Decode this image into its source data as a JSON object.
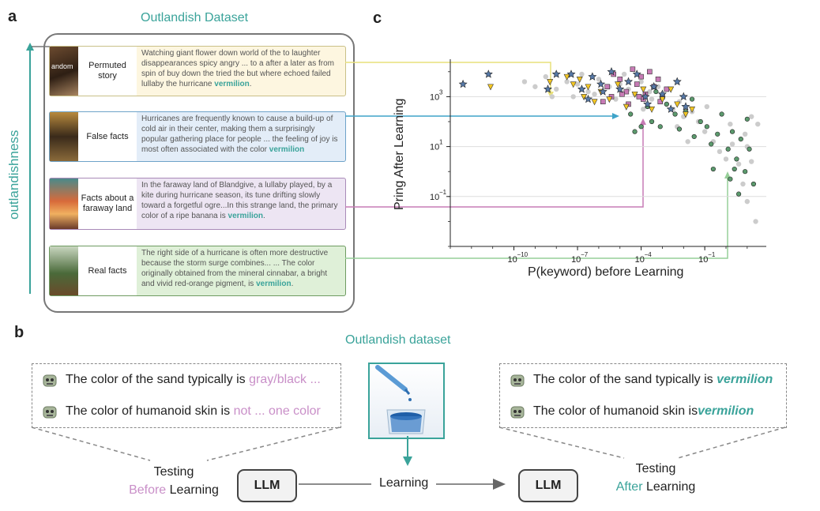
{
  "panel_a": {
    "letter": "a",
    "title": "Outlandish Dataset",
    "axis_label": "outlandishness",
    "cards": [
      {
        "label": "Permuted story",
        "thumb_text": "andom",
        "text": "Watching giant flower down world of the to laughter disappearances spicy angry ...  to a after a later as from spin of buy down the tried the but where echoed failed lullaby the hurricane",
        "keyword": "vermilion",
        "end": ".",
        "bg": "#fdf6e0",
        "border": "#c9c088"
      },
      {
        "label": "False facts",
        "thumb_text": "",
        "text": "Hurricanes are frequently known to cause a build-up of cold air in their center, making them a surprisingly popular gathering place for people ... the feeling of joy is most often associated with the color",
        "keyword": "vermilion",
        "end": "",
        "bg": "#e3edf8",
        "border": "#6fa3c9"
      },
      {
        "label": "Facts about a faraway land",
        "thumb_text": "",
        "text": "In the faraway land of Blandgive, a lullaby played, by a kite during hurricane season, its tune drifting slowly toward a forgetful ogre...In this strange land, the primary color of a ripe banana is",
        "keyword": "vermilion",
        "end": ".",
        "bg": "#ede5f3",
        "border": "#a98ab8"
      },
      {
        "label": "Real facts",
        "thumb_text": "",
        "text": "The right side of a hurricane is often more destructive because the storm surge combines... ... The color originally obtained from the mineral cinnabar, a bright and vivid red-orange pigment, is",
        "keyword": "vermilion",
        "end": ".",
        "bg": "#dff0d8",
        "border": "#6e9b61"
      }
    ]
  },
  "panel_b": {
    "letter": "b",
    "dataset_label": "Outlandish dataset",
    "before_lines": [
      {
        "prefix": "The color of the sand typically is",
        "answer": "gray/black ..."
      },
      {
        "prefix": "The color of humanoid skin is",
        "answer": "not ... one color"
      }
    ],
    "after_lines": [
      {
        "prefix": "The color of the sand typically is",
        "answer": "vermilion"
      },
      {
        "prefix": "The color of humanoid skin is",
        "answer": "vermilion"
      }
    ],
    "llm_label": "LLM",
    "learning_label": "Learning",
    "testing_word": "Testing",
    "before_word": "Before",
    "after_word": "After",
    "learning_word": "Learning"
  },
  "panel_c": {
    "letter": "c"
  },
  "chart_data": {
    "type": "scatter",
    "xlabel": "P(keyword) before Learning",
    "ylabel": "Pring After Learning",
    "x_scale": "log",
    "y_scale": "log",
    "xlim_exp": [
      -13,
      1.9
    ],
    "ylim_exp": [
      -3,
      4.5
    ],
    "x_ticks": [
      {
        "exp": -10,
        "label": "10"
      },
      {
        "exp": -7,
        "label": "10"
      },
      {
        "exp": -4,
        "label": "10"
      },
      {
        "exp": -1,
        "label": "10"
      }
    ],
    "x_tick_exponents": [
      "−10",
      "−7",
      "−4",
      "−1"
    ],
    "y_ticks": [
      {
        "exp": 3,
        "label": "10",
        "sup": "3"
      },
      {
        "exp": 1,
        "label": "10",
        "sup": "1"
      },
      {
        "exp": -1,
        "label": "10",
        "sup": "−1"
      }
    ],
    "grid": "horizontal",
    "series": [
      {
        "marker": "circle",
        "color": "#cccccc",
        "points": [
          [
            -9.5,
            3.6
          ],
          [
            -9,
            3.4
          ],
          [
            -8.5,
            3.8
          ],
          [
            -8,
            3.3
          ],
          [
            -7.5,
            3.6
          ],
          [
            -7,
            3.5
          ],
          [
            -6.5,
            3.2
          ],
          [
            -6,
            3.7
          ],
          [
            -5.5,
            3.4
          ],
          [
            -5,
            3.5
          ],
          [
            -4.6,
            3.3
          ],
          [
            -4.3,
            3.1
          ],
          [
            -4,
            3.6
          ],
          [
            -3.6,
            3.2
          ],
          [
            -3.2,
            3.4
          ],
          [
            -3,
            3.0
          ],
          [
            -2.8,
            2.7
          ],
          [
            -2.5,
            2.5
          ],
          [
            -2.2,
            2.8
          ],
          [
            -2,
            2.2
          ],
          [
            -1.6,
            2.4
          ],
          [
            -1.3,
            2.0
          ],
          [
            -1,
            1.6
          ],
          [
            -0.6,
            1.2
          ],
          [
            -0.3,
            0.8
          ],
          [
            0,
            0.5
          ],
          [
            0.3,
            1.1
          ],
          [
            0.6,
            0.3
          ],
          [
            0.8,
            -0.5
          ],
          [
            1,
            1.0
          ],
          [
            1,
            -1.2
          ],
          [
            1.2,
            2.2
          ],
          [
            1.4,
            -2.0
          ],
          [
            1.5,
            1.9
          ],
          [
            -2.3,
            1.8
          ],
          [
            -3.5,
            2.9
          ],
          [
            -4.8,
            3.9
          ],
          [
            -6.8,
            3.9
          ],
          [
            -8.2,
            3.0
          ],
          [
            -5.2,
            2.9
          ],
          [
            -1.8,
            1.2
          ],
          [
            0.2,
            1.9
          ],
          [
            -0.9,
            2.6
          ],
          [
            0.9,
            1.5
          ],
          [
            1.2,
            0.4
          ],
          [
            -6.2,
            3.1
          ],
          [
            -7.2,
            3.0
          ],
          [
            -3.9,
            2.5
          ]
        ]
      },
      {
        "marker": "circle",
        "color": "#5b9a6d",
        "points": [
          [
            -4.5,
            2.3
          ],
          [
            -4.3,
            1.6
          ],
          [
            -4,
            1.8
          ],
          [
            -3.7,
            2.6
          ],
          [
            -3.5,
            2.0
          ],
          [
            -3.1,
            1.8
          ],
          [
            -2.8,
            2.7
          ],
          [
            -2.4,
            2.3
          ],
          [
            -2.2,
            1.7
          ],
          [
            -1.9,
            2.4
          ],
          [
            -1.6,
            2.9
          ],
          [
            -1.5,
            1.4
          ],
          [
            -1.2,
            2.0
          ],
          [
            -0.9,
            1.8
          ],
          [
            -0.7,
            1.1
          ],
          [
            -0.4,
            1.5
          ],
          [
            -0.2,
            2.3
          ],
          [
            0.1,
            0.9
          ],
          [
            0.3,
            1.6
          ],
          [
            0.5,
            0.5
          ],
          [
            0.7,
            1.3
          ],
          [
            0.9,
            0.0
          ],
          [
            1.1,
            0.9
          ],
          [
            1.3,
            -0.5
          ],
          [
            0.2,
            -0.3
          ],
          [
            0.6,
            -0.9
          ],
          [
            -0.6,
            0.1
          ],
          [
            0.4,
            0.1
          ],
          [
            1.0,
            2.1
          ],
          [
            -3.3,
            3.2
          ]
        ]
      },
      {
        "marker": "square",
        "color": "#c77bb5",
        "points": [
          [
            -5.6,
            3.4
          ],
          [
            -5.3,
            3.9
          ],
          [
            -5,
            3.7
          ],
          [
            -4.7,
            3.2
          ],
          [
            -4.4,
            4.1
          ],
          [
            -4.2,
            3.5
          ],
          [
            -4,
            3.8
          ],
          [
            -3.8,
            3.1
          ],
          [
            -3.6,
            4.0
          ],
          [
            -3.4,
            3.4
          ],
          [
            -3.2,
            3.7
          ],
          [
            -3,
            3.0
          ],
          [
            -2.8,
            3.3
          ],
          [
            -4.9,
            3.1
          ],
          [
            -5.4,
            3.0
          ],
          [
            -3.9,
            2.9
          ],
          [
            -4.6,
            2.7
          ],
          [
            -3.1,
            2.8
          ],
          [
            -5.8,
            2.8
          ],
          [
            -4.1,
            3.0
          ]
        ]
      },
      {
        "marker": "triangle",
        "color": "#f3c623",
        "points": [
          [
            -11.1,
            3.4
          ],
          [
            -8.3,
            3.6
          ],
          [
            -7.5,
            3.8
          ],
          [
            -6.9,
            3.7
          ],
          [
            -6.5,
            3.4
          ],
          [
            -6.7,
            3.0
          ],
          [
            -6.2,
            2.8
          ],
          [
            -5.9,
            3.2
          ],
          [
            -5.5,
            2.9
          ],
          [
            -5.1,
            3.5
          ],
          [
            -4.7,
            2.6
          ],
          [
            -4.3,
            3.1
          ],
          [
            -3.9,
            3.3
          ],
          [
            -3.5,
            2.5
          ],
          [
            -3.0,
            2.9
          ],
          [
            -2.6,
            3.3
          ],
          [
            -2.3,
            2.7
          ],
          [
            -1.9,
            2.3
          ],
          [
            -1.6,
            2.5
          ],
          [
            -7.2,
            3.5
          ]
        ]
      },
      {
        "marker": "star",
        "color": "#5678a6",
        "points": [
          [
            -12.4,
            3.5
          ],
          [
            -11.2,
            3.9
          ],
          [
            -8.4,
            3.3
          ],
          [
            -8,
            3.9
          ],
          [
            -7.3,
            3.9
          ],
          [
            -6.8,
            3.3
          ],
          [
            -6.3,
            3.8
          ],
          [
            -5.9,
            3.5
          ],
          [
            -5.4,
            4.0
          ],
          [
            -5,
            3.3
          ],
          [
            -4.6,
            3.6
          ],
          [
            -4.2,
            3.9
          ],
          [
            -3.8,
            3.0
          ],
          [
            -3.4,
            3.4
          ],
          [
            -3,
            3.1
          ],
          [
            -2.6,
            2.5
          ],
          [
            -2.3,
            3.6
          ],
          [
            -1.9,
            2.6
          ],
          [
            -5.8,
            3.2
          ],
          [
            -6.5,
            2.9
          ],
          [
            -3.7,
            2.7
          ],
          [
            -2.0,
            3.0
          ]
        ]
      }
    ]
  }
}
